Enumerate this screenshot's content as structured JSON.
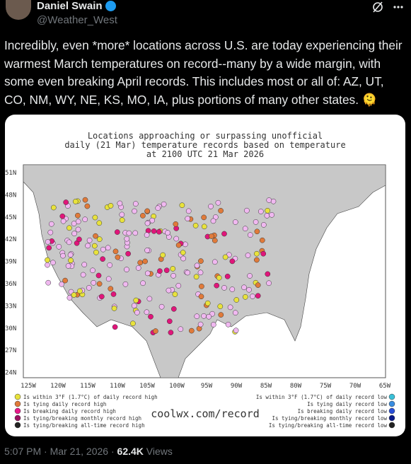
{
  "header": {
    "name": "Daniel Swain",
    "handle": "@Weather_West"
  },
  "tweet": {
    "text": "Incredibly, even *more* locations across U.S. are today experiencing their warmest March temperatures on record--many by a wide margin, with some even breaking April records. This includes most or all of: AZ, UT, CO, NM, WY, NE, KS, MO, IA, plus portions of many other states. 🫠"
  },
  "image": {
    "title_lines": [
      "Locations approaching or surpassing unofficial",
      "daily (21 Mar) temperature records based on temperature",
      "at 2100 UTC 21 Mar 2026"
    ],
    "lat_labels": [
      "51N",
      "48N",
      "45N",
      "42N",
      "39N",
      "36N",
      "33N",
      "30N",
      "27N",
      "24N"
    ],
    "lon_labels": [
      "125W",
      "120W",
      "115W",
      "110W",
      "105W",
      "100W",
      "95W",
      "90W",
      "85W",
      "80W",
      "75W",
      "70W",
      "65W"
    ],
    "legend_left": [
      "Is within 3°F (1.7°C) of daily record high",
      "Is tying daily record high",
      "Is breaking daily record high",
      "Is tying/breaking monthly record high",
      "Is tying/breaking all-time record high"
    ],
    "legend_right": [
      "Is within 3°F (1.7°C) of daily record low",
      "Is tying daily record low",
      "Is breaking daily record low",
      "Is tying/breaking monthly record low",
      "Is tying/breaking all-time record low"
    ],
    "url": "coolwx.com/record"
  },
  "footer": {
    "time": "5:07 PM · Mar 21, 2026 · ",
    "views": "62.4K",
    "views_label": " Views"
  }
}
